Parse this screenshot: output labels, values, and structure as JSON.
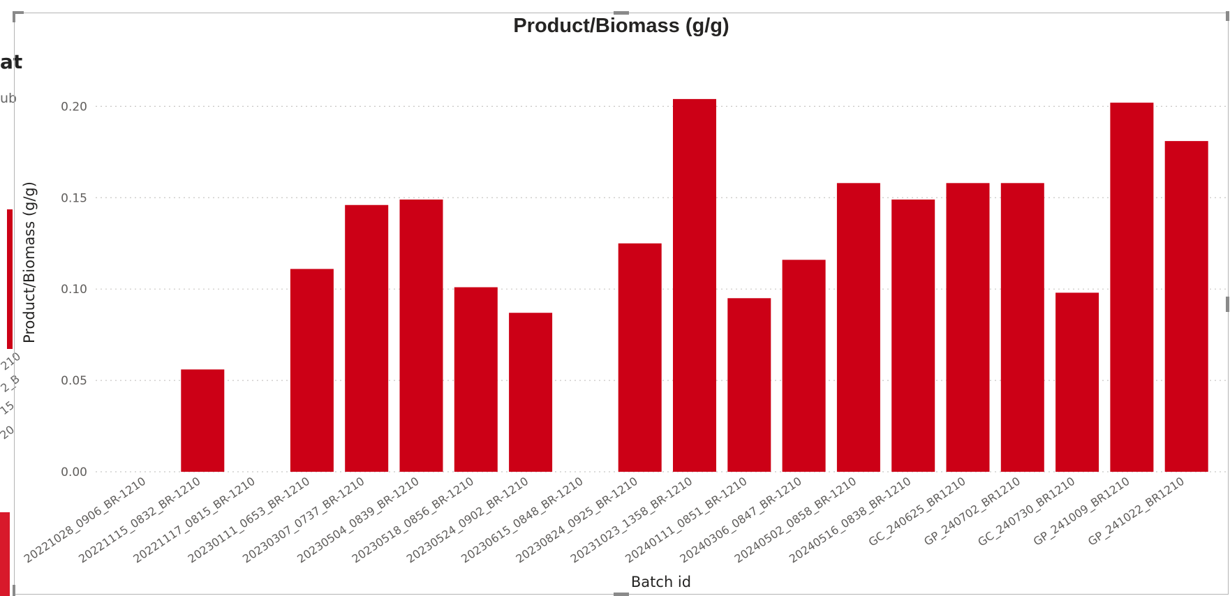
{
  "background_fragments": {
    "partial_heading": "at",
    "partial_subtext": "ub",
    "legend_fragments": [
      "210",
      "2_B",
      "15",
      "20"
    ]
  },
  "colors": {
    "bar": "#cc0016",
    "grid": "#c8c6c4",
    "text": "#252423",
    "tick": "#605e5c"
  },
  "chart_data": {
    "type": "bar",
    "title": "Product/Biomass (g/g)",
    "xlabel": "Batch id",
    "ylabel": "Product/Biomass (g/g)",
    "ylim": [
      0,
      0.22
    ],
    "yticks": [
      "0.00",
      "0.05",
      "0.10",
      "0.15",
      "0.20"
    ],
    "grid": true,
    "categories": [
      "20221028_0906_BR-1210",
      "20221115_0832_BR-1210",
      "20221117_0815_BR-1210",
      "20230111_0653_BR-1210",
      "20230307_0737_BR-1210",
      "20230504_0839_BR-1210",
      "20230518_0856_BR-1210",
      "20230524_0902_BR-1210",
      "20230615_0848_BR-1210",
      "20230824_0925_BR-1210",
      "20231023_1358_BR-1210",
      "20240111_0851_BR-1210",
      "20240306_0847_BR-1210",
      "20240502_0858_BR-1210",
      "20240516_0838_BR-1210",
      "GC_240625_BR1210",
      "GP_240702_BR1210",
      "GC_240730_BR1210",
      "GP_241009_BR1210",
      "GP_241022_BR1210"
    ],
    "values": [
      0,
      0.056,
      0,
      0.111,
      0.146,
      0.149,
      0.101,
      0.087,
      0,
      0.125,
      0.204,
      0.095,
      0.116,
      0.158,
      0.149,
      0.158,
      0.158,
      0.098,
      0.202,
      0.181
    ]
  }
}
